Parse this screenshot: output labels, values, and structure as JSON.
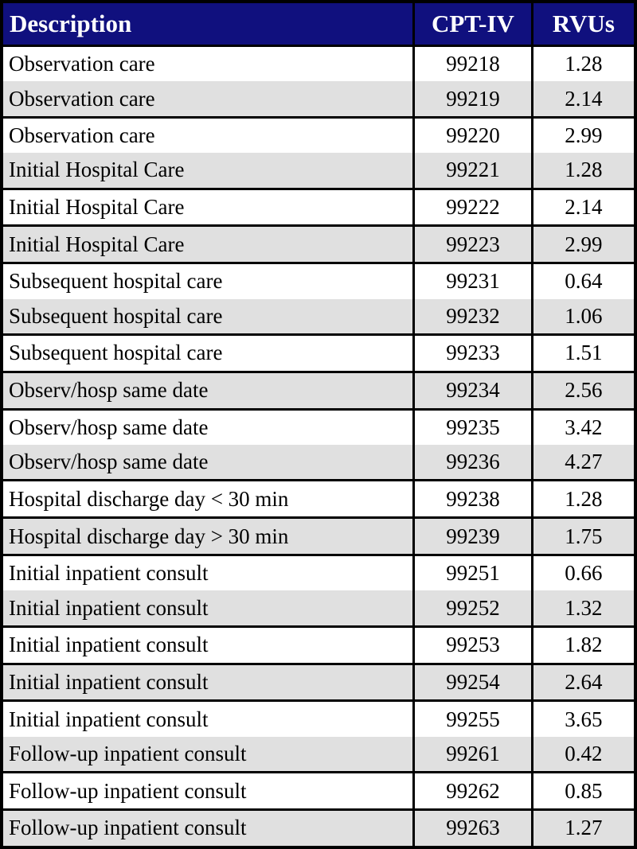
{
  "colors": {
    "header_bg": "#10107E",
    "header_fg": "#FFFFFF",
    "alt_row_bg": "#E0E0E0",
    "border_color": "#000000"
  },
  "table": {
    "columns": [
      {
        "label": "Description"
      },
      {
        "label": "CPT-IV"
      },
      {
        "label": "RVUs"
      }
    ],
    "rows": [
      {
        "description": "Observation care",
        "code": "99218",
        "rvu": "1.28"
      },
      {
        "description": "Observation care",
        "code": "99219",
        "rvu": "2.14"
      },
      {
        "description": "Observation care",
        "code": "99220",
        "rvu": "2.99"
      },
      {
        "description": "Initial Hospital Care",
        "code": "99221",
        "rvu": "1.28"
      },
      {
        "description": "Initial Hospital Care",
        "code": "99222",
        "rvu": "2.14"
      },
      {
        "description": "Initial Hospital Care",
        "code": "99223",
        "rvu": "2.99"
      },
      {
        "description": "Subsequent hospital care",
        "code": "99231",
        "rvu": "0.64"
      },
      {
        "description": "Subsequent hospital care",
        "code": "99232",
        "rvu": "1.06"
      },
      {
        "description": "Subsequent hospital care",
        "code": "99233",
        "rvu": "1.51"
      },
      {
        "description": "Observ/hosp same date",
        "code": "99234",
        "rvu": "2.56"
      },
      {
        "description": "Observ/hosp same date",
        "code": "99235",
        "rvu": "3.42"
      },
      {
        "description": "Observ/hosp same date",
        "code": "99236",
        "rvu": "4.27"
      },
      {
        "description": "Hospital discharge day < 30 min",
        "code": "99238",
        "rvu": "1.28"
      },
      {
        "description": "Hospital discharge day > 30 min",
        "code": "99239",
        "rvu": "1.75"
      },
      {
        "description": "Initial inpatient consult",
        "code": "99251",
        "rvu": "0.66"
      },
      {
        "description": "Initial inpatient consult",
        "code": "99252",
        "rvu": "1.32"
      },
      {
        "description": "Initial inpatient consult",
        "code": "99253",
        "rvu": "1.82"
      },
      {
        "description": "Initial inpatient consult",
        "code": "99254",
        "rvu": "2.64"
      },
      {
        "description": "Initial inpatient consult",
        "code": "99255",
        "rvu": "3.65"
      },
      {
        "description": "Follow-up inpatient consult",
        "code": "99261",
        "rvu": "0.42"
      },
      {
        "description": "Follow-up inpatient consult",
        "code": "99262",
        "rvu": "0.85"
      },
      {
        "description": "Follow-up inpatient consult",
        "code": "99263",
        "rvu": "1.27"
      }
    ]
  }
}
